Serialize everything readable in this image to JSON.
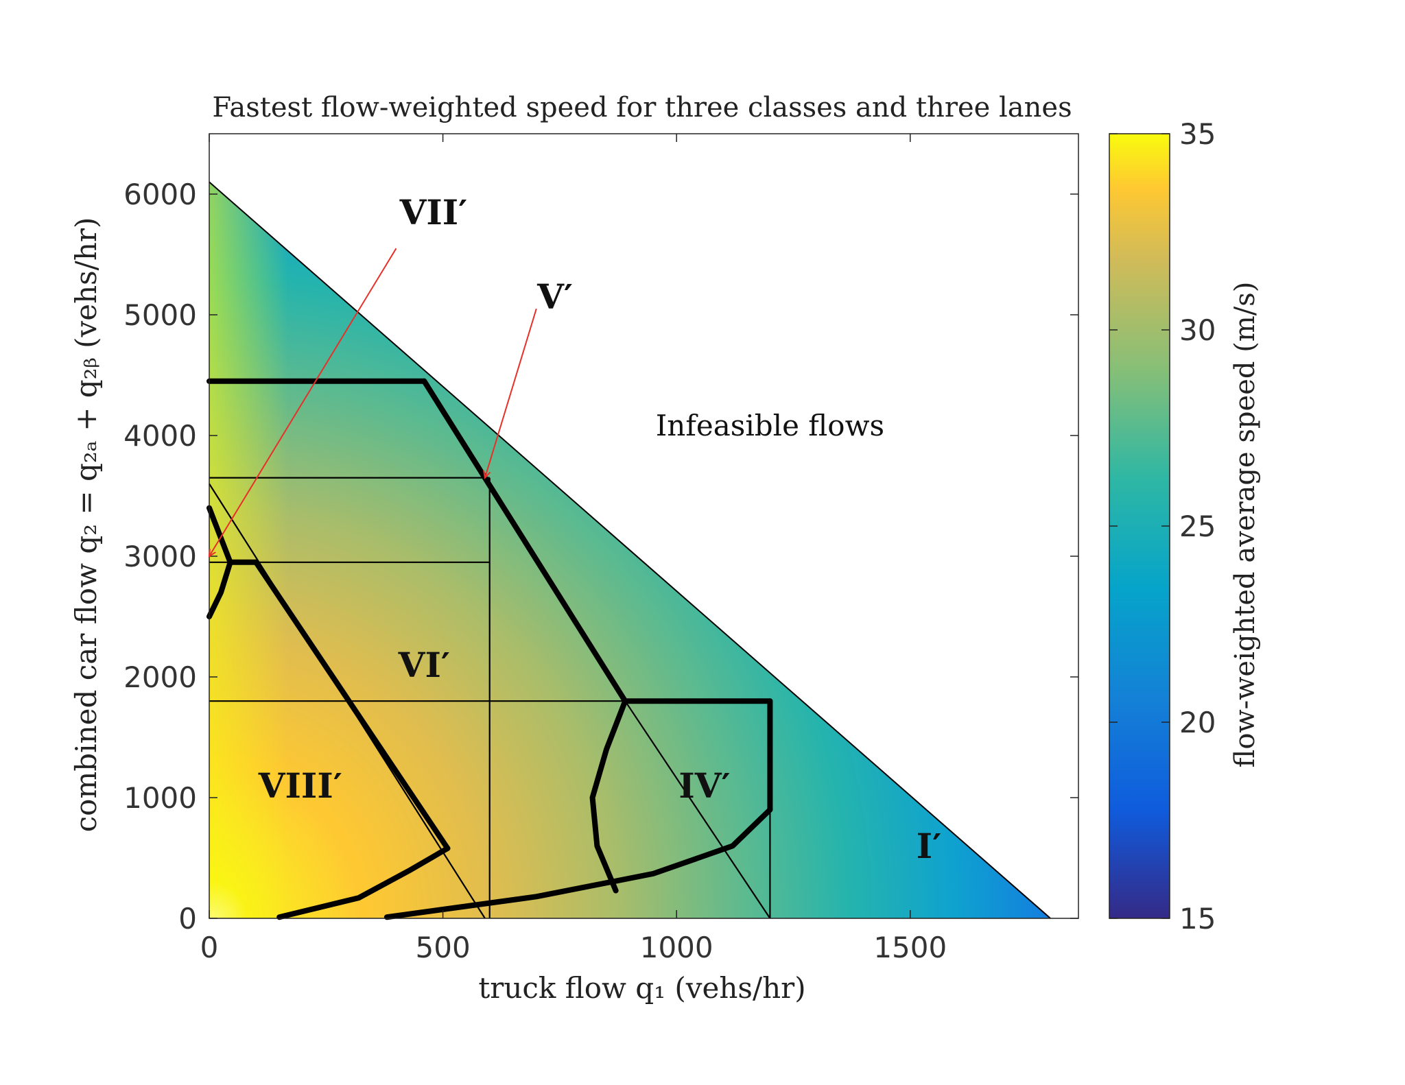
{
  "chart_data": {
    "type": "heatmap",
    "title": "Fastest flow-weighted speed for three classes and three lanes",
    "xlabel": "truck flow q₁ (vehs/hr)",
    "ylabel": "combined car flow q₂ = q₂ₐ + q₂ᵦ (vehs/hr)",
    "xlim": [
      0,
      1860
    ],
    "ylim": [
      0,
      6500
    ],
    "x_ticks": [
      0,
      500,
      1000,
      1500
    ],
    "x_tick_labels": [
      "0",
      "500",
      "1000",
      "1500"
    ],
    "y_ticks": [
      0,
      1000,
      2000,
      3000,
      4000,
      5000,
      6000
    ],
    "y_tick_labels": [
      "0",
      "1000",
      "2000",
      "3000",
      "4000",
      "5000",
      "6000"
    ],
    "colorbar": {
      "label": "flow-weighted average speed (m/s)",
      "range": [
        15,
        35
      ],
      "ticks": [
        15,
        20,
        25,
        30,
        35
      ],
      "tick_labels": [
        "15",
        "20",
        "25",
        "30",
        "35"
      ],
      "colormap": "parula"
    },
    "feasible_boundary": [
      [
        0,
        6100
      ],
      [
        1800,
        0
      ]
    ],
    "annotation_text": "Infeasible flows",
    "regions": [
      {
        "label": "VIII′",
        "x": 195,
        "y": 1000
      },
      {
        "label": "VI′",
        "x": 460,
        "y": 2000
      },
      {
        "label": "IV′",
        "x": 1060,
        "y": 1000
      },
      {
        "label": "I′",
        "x": 1540,
        "y": 500
      },
      {
        "label": "VII′",
        "x": 480,
        "y": 5750
      },
      {
        "label": "V′",
        "x": 740,
        "y": 5050
      }
    ],
    "thick_boundaries": [
      [
        [
          0,
          4450
        ],
        [
          460,
          4450
        ]
      ],
      [
        [
          460,
          4450
        ],
        [
          890,
          1800
        ]
      ],
      [
        [
          890,
          1800
        ],
        [
          1200,
          1800
        ]
      ],
      [
        [
          1200,
          1800
        ],
        [
          1200,
          900
        ]
      ],
      [
        [
          1200,
          900
        ],
        [
          1120,
          600
        ],
        [
          950,
          370
        ],
        [
          700,
          180
        ],
        [
          380,
          10
        ]
      ],
      [
        [
          890,
          1800
        ],
        [
          850,
          1400
        ],
        [
          820,
          1000
        ],
        [
          830,
          600
        ],
        [
          870,
          230
        ]
      ],
      [
        [
          0,
          3400
        ],
        [
          25,
          3150
        ],
        [
          45,
          2950
        ],
        [
          25,
          2700
        ],
        [
          0,
          2500
        ]
      ],
      [
        [
          45,
          2950
        ],
        [
          100,
          2950
        ]
      ],
      [
        [
          100,
          2950
        ],
        [
          510,
          580
        ]
      ],
      [
        [
          510,
          580
        ],
        [
          430,
          400
        ],
        [
          320,
          170
        ],
        [
          150,
          10
        ]
      ]
    ],
    "thin_lines": [
      [
        [
          0,
          3650
        ],
        [
          600,
          3650
        ]
      ],
      [
        [
          0,
          2950
        ],
        [
          600,
          2950
        ]
      ],
      [
        [
          0,
          1800
        ],
        [
          890,
          1800
        ]
      ],
      [
        [
          600,
          3650
        ],
        [
          600,
          0
        ]
      ],
      [
        [
          1200,
          1800
        ],
        [
          1200,
          0
        ]
      ],
      [
        [
          0,
          3600
        ],
        [
          590,
          0
        ]
      ],
      [
        [
          890,
          1800
        ],
        [
          1200,
          0
        ]
      ]
    ],
    "arrows": [
      {
        "from": [
          400,
          5550
        ],
        "to": [
          0,
          3000
        ]
      },
      {
        "from": [
          700,
          5050
        ],
        "to": [
          590,
          3650
        ]
      }
    ],
    "colors": {
      "arrow": "#e8302a",
      "boundary": "#000000"
    }
  }
}
